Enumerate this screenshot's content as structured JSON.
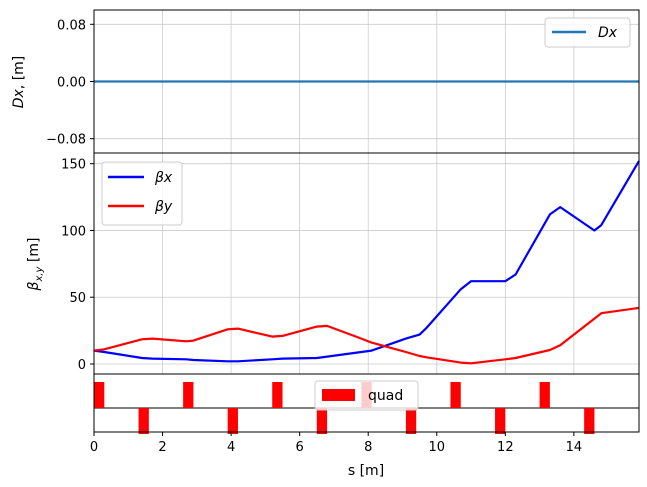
{
  "chart_data": [
    {
      "type": "line",
      "panel": "dispersion",
      "ylabel": "Dx, [m]",
      "xlim": [
        0,
        15.9
      ],
      "ylim": [
        -0.1,
        0.1
      ],
      "yticks": [
        -0.08,
        0.0,
        0.08
      ],
      "ytick_labels": [
        "−0.08",
        "0.00",
        "0.08"
      ],
      "grid": true,
      "legend_position": "top-right",
      "series": [
        {
          "name": "Dx",
          "color": "#1f77b4",
          "x": [
            0,
            15.9
          ],
          "y": [
            0,
            0
          ]
        }
      ]
    },
    {
      "type": "line",
      "panel": "beta",
      "ylabel": "βx,y [m]",
      "xlim": [
        0,
        15.9
      ],
      "ylim": [
        -7.5,
        158
      ],
      "yticks": [
        0,
        50,
        100,
        150
      ],
      "ytick_labels": [
        "0",
        "50",
        "100",
        "150"
      ],
      "grid": true,
      "legend_position": "top-left",
      "series": [
        {
          "name": "βx",
          "color": "#0000ff",
          "x": [
            0,
            0.3,
            1.4,
            1.7,
            2.7,
            2.9,
            3.9,
            4.2,
            5.2,
            5.5,
            6.5,
            6.8,
            7.8,
            8.1,
            9.1,
            9.5,
            9.7,
            10.7,
            11.0,
            11.4,
            12.0,
            12.3,
            13.3,
            13.6,
            14.6,
            14.8,
            15.9
          ],
          "y": [
            10,
            9,
            4.5,
            4,
            3.5,
            3,
            2,
            2,
            3.5,
            4,
            4.5,
            5.5,
            9,
            10,
            19,
            22,
            27,
            56,
            62,
            62,
            62,
            67,
            112,
            117.5,
            100,
            104,
            152
          ]
        },
        {
          "name": "βy",
          "color": "#ff0000",
          "x": [
            0,
            0.3,
            1.4,
            1.7,
            2.7,
            2.9,
            3.9,
            4.2,
            5.2,
            5.5,
            6.5,
            6.8,
            7.8,
            8.1,
            9.1,
            9.5,
            9.7,
            10.7,
            11.0,
            12.0,
            12.3,
            13.3,
            13.6,
            14.6,
            14.8,
            15.9
          ],
          "y": [
            10,
            11,
            18.5,
            19,
            17,
            17.5,
            26,
            26.5,
            20.5,
            21,
            28,
            28.5,
            19,
            16,
            9,
            6,
            5,
            1,
            0.5,
            3.5,
            4.5,
            10.5,
            14,
            34,
            38,
            42
          ]
        }
      ]
    },
    {
      "type": "bar",
      "panel": "magnets",
      "xlabel": "s [m]",
      "xlim": [
        0,
        15.9
      ],
      "xticks": [
        0,
        2,
        4,
        6,
        8,
        10,
        12,
        14
      ],
      "xtick_labels": [
        "0",
        "2",
        "4",
        "6",
        "8",
        "10",
        "12",
        "14"
      ],
      "legend_position": "top-center",
      "series": [
        {
          "name": "quad",
          "color": "#ff0000",
          "positions": [
            0.15,
            1.45,
            2.75,
            4.05,
            5.35,
            6.65,
            7.95,
            9.25,
            10.55,
            11.85,
            13.15,
            14.45
          ],
          "signs": [
            1,
            -1,
            1,
            -1,
            1,
            -1,
            1,
            -1,
            1,
            -1,
            1,
            -1
          ],
          "length": 0.3
        }
      ]
    }
  ],
  "legend": {
    "dx_label": "Dx",
    "betax_label": "βx",
    "betay_label": "βy",
    "quad_label": "quad"
  },
  "labels": {
    "dx_ylabel_italic": "Dx",
    "dx_ylabel_rest": ", [m]",
    "beta_ylabel_base": "β",
    "beta_ylabel_sub": "x,y",
    "beta_ylabel_rest": " [m]",
    "xlabel": "s [m]"
  }
}
